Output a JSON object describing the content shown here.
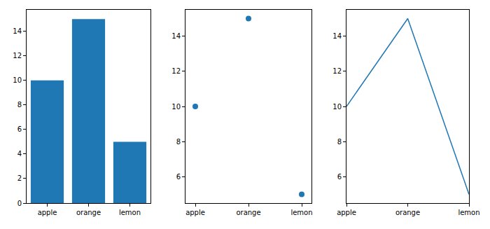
{
  "chart_data": [
    {
      "type": "bar",
      "categories": [
        "apple",
        "orange",
        "lemon"
      ],
      "values": [
        10,
        15,
        5
      ],
      "color": "#1f77b4",
      "ylim": [
        0,
        15.75
      ],
      "yticks": [
        0,
        2,
        4,
        6,
        8,
        10,
        12,
        14
      ]
    },
    {
      "type": "scatter",
      "categories": [
        "apple",
        "orange",
        "lemon"
      ],
      "values": [
        10,
        15,
        5
      ],
      "color": "#1f77b4",
      "ylim": [
        4.5,
        15.5
      ],
      "yticks": [
        6,
        8,
        10,
        12,
        14
      ]
    },
    {
      "type": "line",
      "categories": [
        "apple",
        "orange",
        "lemon"
      ],
      "values": [
        10,
        15,
        5
      ],
      "color": "#1f77b4",
      "ylim": [
        4.5,
        15.5
      ],
      "yticks": [
        6,
        8,
        10,
        12,
        14
      ]
    }
  ]
}
